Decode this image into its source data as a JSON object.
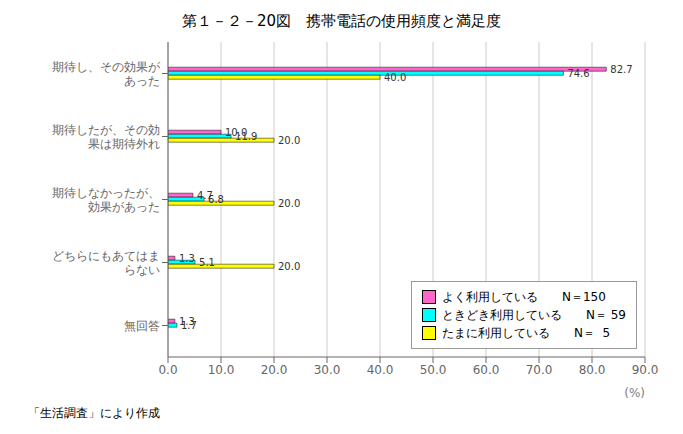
{
  "chart_data": {
    "type": "bar",
    "orientation": "horizontal",
    "title": "第１－２－20図　携帯電話の使用頻度と満足度",
    "xlabel": "(%)",
    "annotations": [
      "「生活調査」により作成"
    ],
    "categories": [
      "期待し、その効果が\nあった",
      "期待したが、その効\n果は期待外れ",
      "期待しなかったが、\n効果があった",
      "どちらにもあてはま\nらない",
      "無回答"
    ],
    "series": [
      {
        "name": "よく利用している　　N＝150",
        "color": "#FF66CC",
        "values": [
          82.7,
          10.0,
          4.7,
          1.3,
          1.3
        ],
        "value_labels": [
          "82.7",
          "10.0",
          "4.7",
          "1.3",
          "1.3"
        ]
      },
      {
        "name": "ときどき利用している　　N＝ 59",
        "color": "#00FFFF",
        "values": [
          74.6,
          11.9,
          6.8,
          5.1,
          1.7
        ],
        "value_labels": [
          "74.6",
          "11.9",
          "6.8",
          "5.1",
          "1.7"
        ]
      },
      {
        "name": "たまに利用している　　N＝  5",
        "color": "#FFFF00",
        "values": [
          40.0,
          20.0,
          20.0,
          20.0,
          0.0
        ],
        "value_labels": [
          "40.0",
          "20.0",
          "20.0",
          "20.0",
          null
        ]
      }
    ],
    "xlim": [
      0,
      90
    ],
    "xticks": [
      {
        "value": 0,
        "label": "0.0"
      },
      {
        "value": 10,
        "label": "10.0"
      },
      {
        "value": 20,
        "label": "20.0"
      },
      {
        "value": 30,
        "label": "30.0"
      },
      {
        "value": 40,
        "label": "40.0"
      },
      {
        "value": 50,
        "label": "50.0"
      },
      {
        "value": 60,
        "label": "60.0"
      },
      {
        "value": 70,
        "label": "70.0"
      },
      {
        "value": 80,
        "label": "80.0"
      },
      {
        "value": 90,
        "label": "90.0"
      }
    ],
    "grid": true,
    "legend": "lower right",
    "data_labels": true
  }
}
